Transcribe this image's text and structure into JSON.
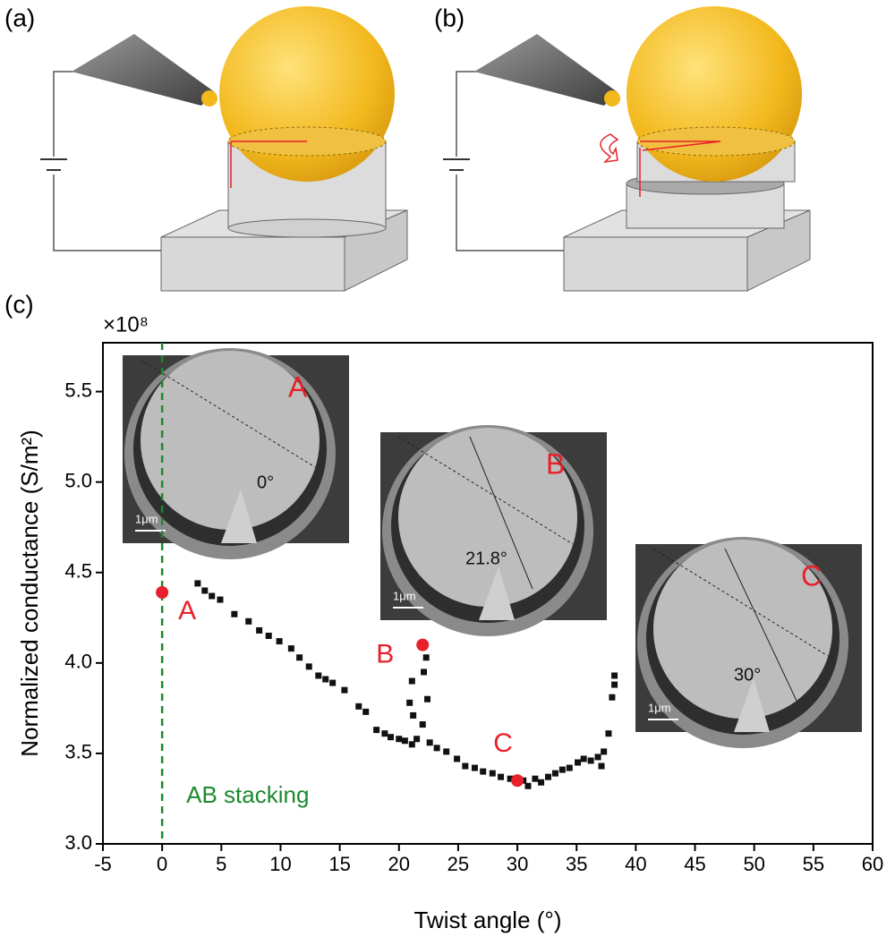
{
  "panels": [
    "(a)",
    "(b)",
    "(c)"
  ],
  "chart_data": {
    "type": "scatter",
    "multiplier": "×10⁸",
    "xlabel": "Twist angle (°)",
    "ylabel": "Normalized conductance (S/m²)",
    "xlim": [
      -5,
      60
    ],
    "ylim": [
      3.0,
      5.77
    ],
    "xticks": [
      -5,
      0,
      5,
      10,
      15,
      20,
      25,
      30,
      35,
      40,
      45,
      50,
      55,
      60
    ],
    "yticks": [
      {
        "value": 3,
        "label": "3.0"
      },
      3.5,
      {
        "value": 4,
        "label": "4.0"
      },
      4.5,
      {
        "value": 5,
        "label": "5.0"
      },
      5.5
    ],
    "color": "#111111",
    "x": [
      3.0,
      3.6,
      4.2,
      4.9,
      6.1,
      7.3,
      8.2,
      9.0,
      9.9,
      10.9,
      11.6,
      12.4,
      13.2,
      13.8,
      14.4,
      15.4,
      16.6,
      17.2,
      18.1,
      18.8,
      19.3,
      20.0,
      20.5,
      21.1,
      20.9,
      21.1,
      21.2,
      21.5,
      22.0,
      22.1,
      22.3,
      22.4,
      22.6,
      23.2,
      24.0,
      24.9,
      25.6,
      26.4,
      27.1,
      27.9,
      28.6,
      29.4,
      30.5,
      30.9,
      31.5,
      32.0,
      32.6,
      33.2,
      33.8,
      34.4,
      35.1,
      35.6,
      36.2,
      36.8,
      37.1,
      37.3,
      37.7,
      38.0,
      38.2,
      38.2
    ],
    "values": [
      4.44,
      4.4,
      4.37,
      4.35,
      4.27,
      4.23,
      4.18,
      4.15,
      4.12,
      4.08,
      4.03,
      3.98,
      3.93,
      3.91,
      3.89,
      3.85,
      3.76,
      3.73,
      3.63,
      3.61,
      3.59,
      3.58,
      3.57,
      3.55,
      3.78,
      3.9,
      3.71,
      3.58,
      3.66,
      3.95,
      4.03,
      3.8,
      3.56,
      3.53,
      3.51,
      3.47,
      3.43,
      3.42,
      3.4,
      3.39,
      3.37,
      3.36,
      3.35,
      3.32,
      3.36,
      3.34,
      3.37,
      3.39,
      3.41,
      3.42,
      3.45,
      3.47,
      3.46,
      3.48,
      3.43,
      3.51,
      3.61,
      3.81,
      3.88,
      3.93
    ],
    "highlights": {
      "color": "#e8202a",
      "x": [
        0,
        22,
        30
      ],
      "values": [
        4.39,
        4.1,
        3.35
      ],
      "labels": [
        "A",
        "B",
        "C"
      ]
    },
    "vline": {
      "x": 0,
      "color": "#1a8a2e",
      "label": "AB stacking"
    },
    "insets": [
      {
        "label": "A",
        "angle": "0°",
        "scale": "1μm"
      },
      {
        "label": "B",
        "angle": "21.8°",
        "scale": "1μm"
      },
      {
        "label": "C",
        "angle": "30°",
        "scale": "1μm"
      }
    ]
  }
}
